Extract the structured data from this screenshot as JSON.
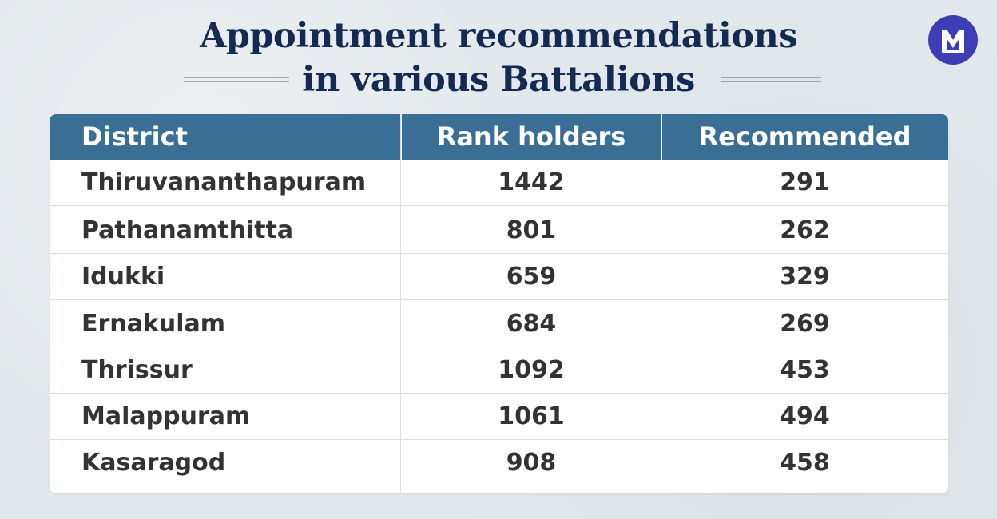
{
  "title": {
    "line1": "Appointment recommendations",
    "line2": "in various Battalions"
  },
  "logo": {
    "icon": "m-logo-icon",
    "letter": "M",
    "color": "#3c3fb4"
  },
  "colors": {
    "header_bg": "#3a6f95",
    "title_text": "#132a52",
    "cell_text": "#333333",
    "background": "#e3e8ec"
  },
  "chart_data": {
    "type": "table",
    "columns": [
      "District",
      "Rank holders",
      "Recommended"
    ],
    "rows": [
      [
        "Thiruvananthapuram",
        "1442",
        "291"
      ],
      [
        "Pathanamthitta",
        "801",
        "262"
      ],
      [
        "Idukki",
        "659",
        "329"
      ],
      [
        "Ernakulam",
        "684",
        "269"
      ],
      [
        "Thrissur",
        "1092",
        "453"
      ],
      [
        "Malappuram",
        "1061",
        "494"
      ],
      [
        "Kasaragod",
        "908",
        "458"
      ]
    ]
  }
}
